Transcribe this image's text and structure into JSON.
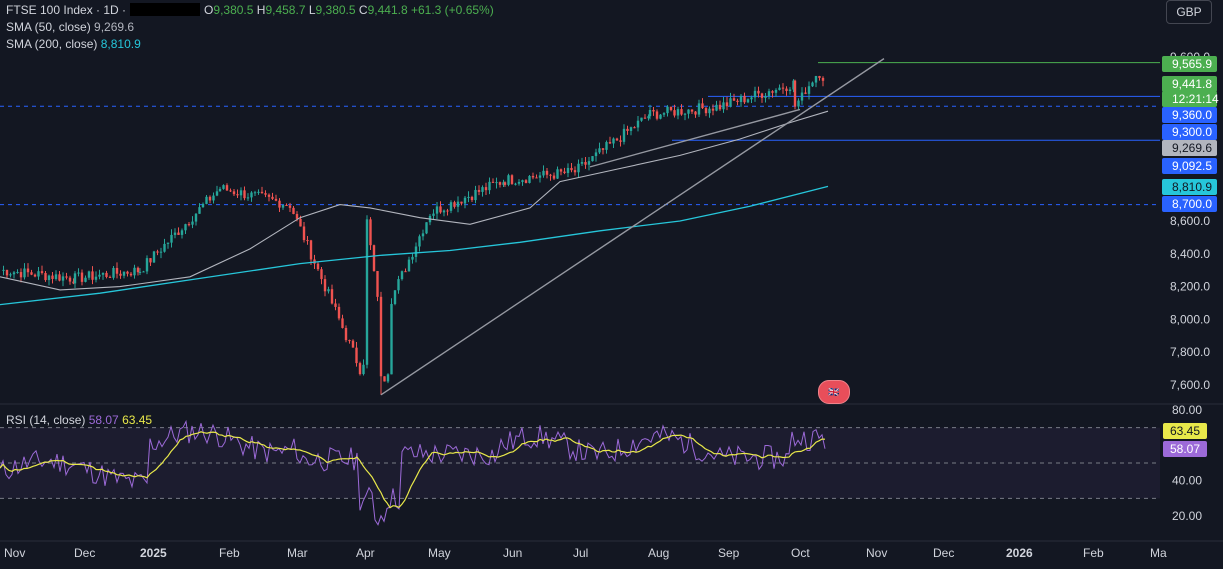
{
  "legend": {
    "symbol": "FTSE 100 Index · 1D ·",
    "o_label": "O",
    "o_value": "9,380.5",
    "h_label": "H",
    "h_value": "9,458.7",
    "l_label": "L",
    "l_value": "9,380.5",
    "c_label": "C",
    "c_value": "9,441.8",
    "change": "+61.3 (+0.65%)",
    "sma50_label": "SMA (50, close)",
    "sma50_value": "9,269.6",
    "sma200_label": "SMA (200, close)",
    "sma200_value": "8,810.9",
    "rsi_label": "RSI (14, close)",
    "rsi_value": "58.07",
    "rsi_ma_value": "63.45"
  },
  "currency": "GBP",
  "colors": {
    "background": "#131722",
    "up": "#26a69a",
    "down": "#ef5350",
    "sma50": "#b2b5be",
    "sma200": "#26c6da",
    "rsi": "#9c6ad8",
    "rsi_ma": "#e8e84a",
    "level_blue": "#2962ff",
    "green_label": "#4caf50"
  },
  "chart_data": [
    {
      "type": "candlestick",
      "title": "FTSE 100 Index · 1D",
      "x_ticks": [
        "Nov",
        "Dec",
        "2025",
        "Feb",
        "Mar",
        "Apr",
        "May",
        "Jun",
        "Jul",
        "Aug",
        "Sep",
        "Oct",
        "Nov",
        "Dec",
        "2026",
        "Feb",
        "Ma"
      ],
      "y_ticks": [
        "7,600.0",
        "7,800.0",
        "8,000.0",
        "8,200.0",
        "8,400.0",
        "8,600.0"
      ],
      "ylim": [
        7500,
        9700
      ],
      "monthly_path": [
        {
          "month": "Nov 2024",
          "close": 8150
        },
        {
          "month": "Dec 2024",
          "close": 8250
        },
        {
          "month": "Jan 2025",
          "close": 8300
        },
        {
          "month": "Feb 2025",
          "close": 8800
        },
        {
          "month": "Mar 2025",
          "close": 8700
        },
        {
          "month": "Apr 2025",
          "close": 7700
        },
        {
          "month": "May 2025",
          "close": 8650
        },
        {
          "month": "Jun 2025",
          "close": 8850
        },
        {
          "month": "Jul 2025",
          "close": 8900
        },
        {
          "month": "Aug 2025",
          "close": 9250
        },
        {
          "month": "Sep 2025",
          "close": 9300
        },
        {
          "month": "Oct 2025",
          "close": 9441.8
        }
      ],
      "key_points": {
        "april_low": 7540,
        "october_high": 9565.9
      },
      "price_labels": [
        {
          "text": "9,565.9",
          "color": "#4caf50"
        },
        {
          "text": "9,441.8",
          "color": "#4caf50"
        },
        {
          "text": "12:21:14",
          "color": "#4caf50"
        },
        {
          "text": "9,360.0",
          "color": "#2962ff"
        },
        {
          "text": "9,300.0",
          "color": "#2962ff"
        },
        {
          "text": "9,269.6",
          "color": "#b2b5be"
        },
        {
          "text": "9,092.5",
          "color": "#2962ff"
        },
        {
          "text": "8,810.9",
          "color": "#26c6da"
        },
        {
          "text": "8,700.0",
          "color": "#2962ff"
        }
      ],
      "partial_top_tick": "9,600.0",
      "horizontal_levels": [
        9565.9,
        9360.0,
        9300.0,
        9092.5,
        8700.0
      ],
      "series": [
        {
          "name": "SMA (50, close)",
          "last": 9269.6
        },
        {
          "name": "SMA (200, close)",
          "last": 8810.9
        }
      ]
    },
    {
      "type": "line",
      "title": "RSI (14, close)",
      "y_ticks": [
        "80.00",
        "40.00",
        "20.00"
      ],
      "ylim": [
        15,
        80
      ],
      "bands": [
        70,
        50,
        30
      ],
      "series": [
        {
          "name": "RSI",
          "last": 58.07
        },
        {
          "name": "RSI MA",
          "last": 63.45
        }
      ]
    }
  ]
}
